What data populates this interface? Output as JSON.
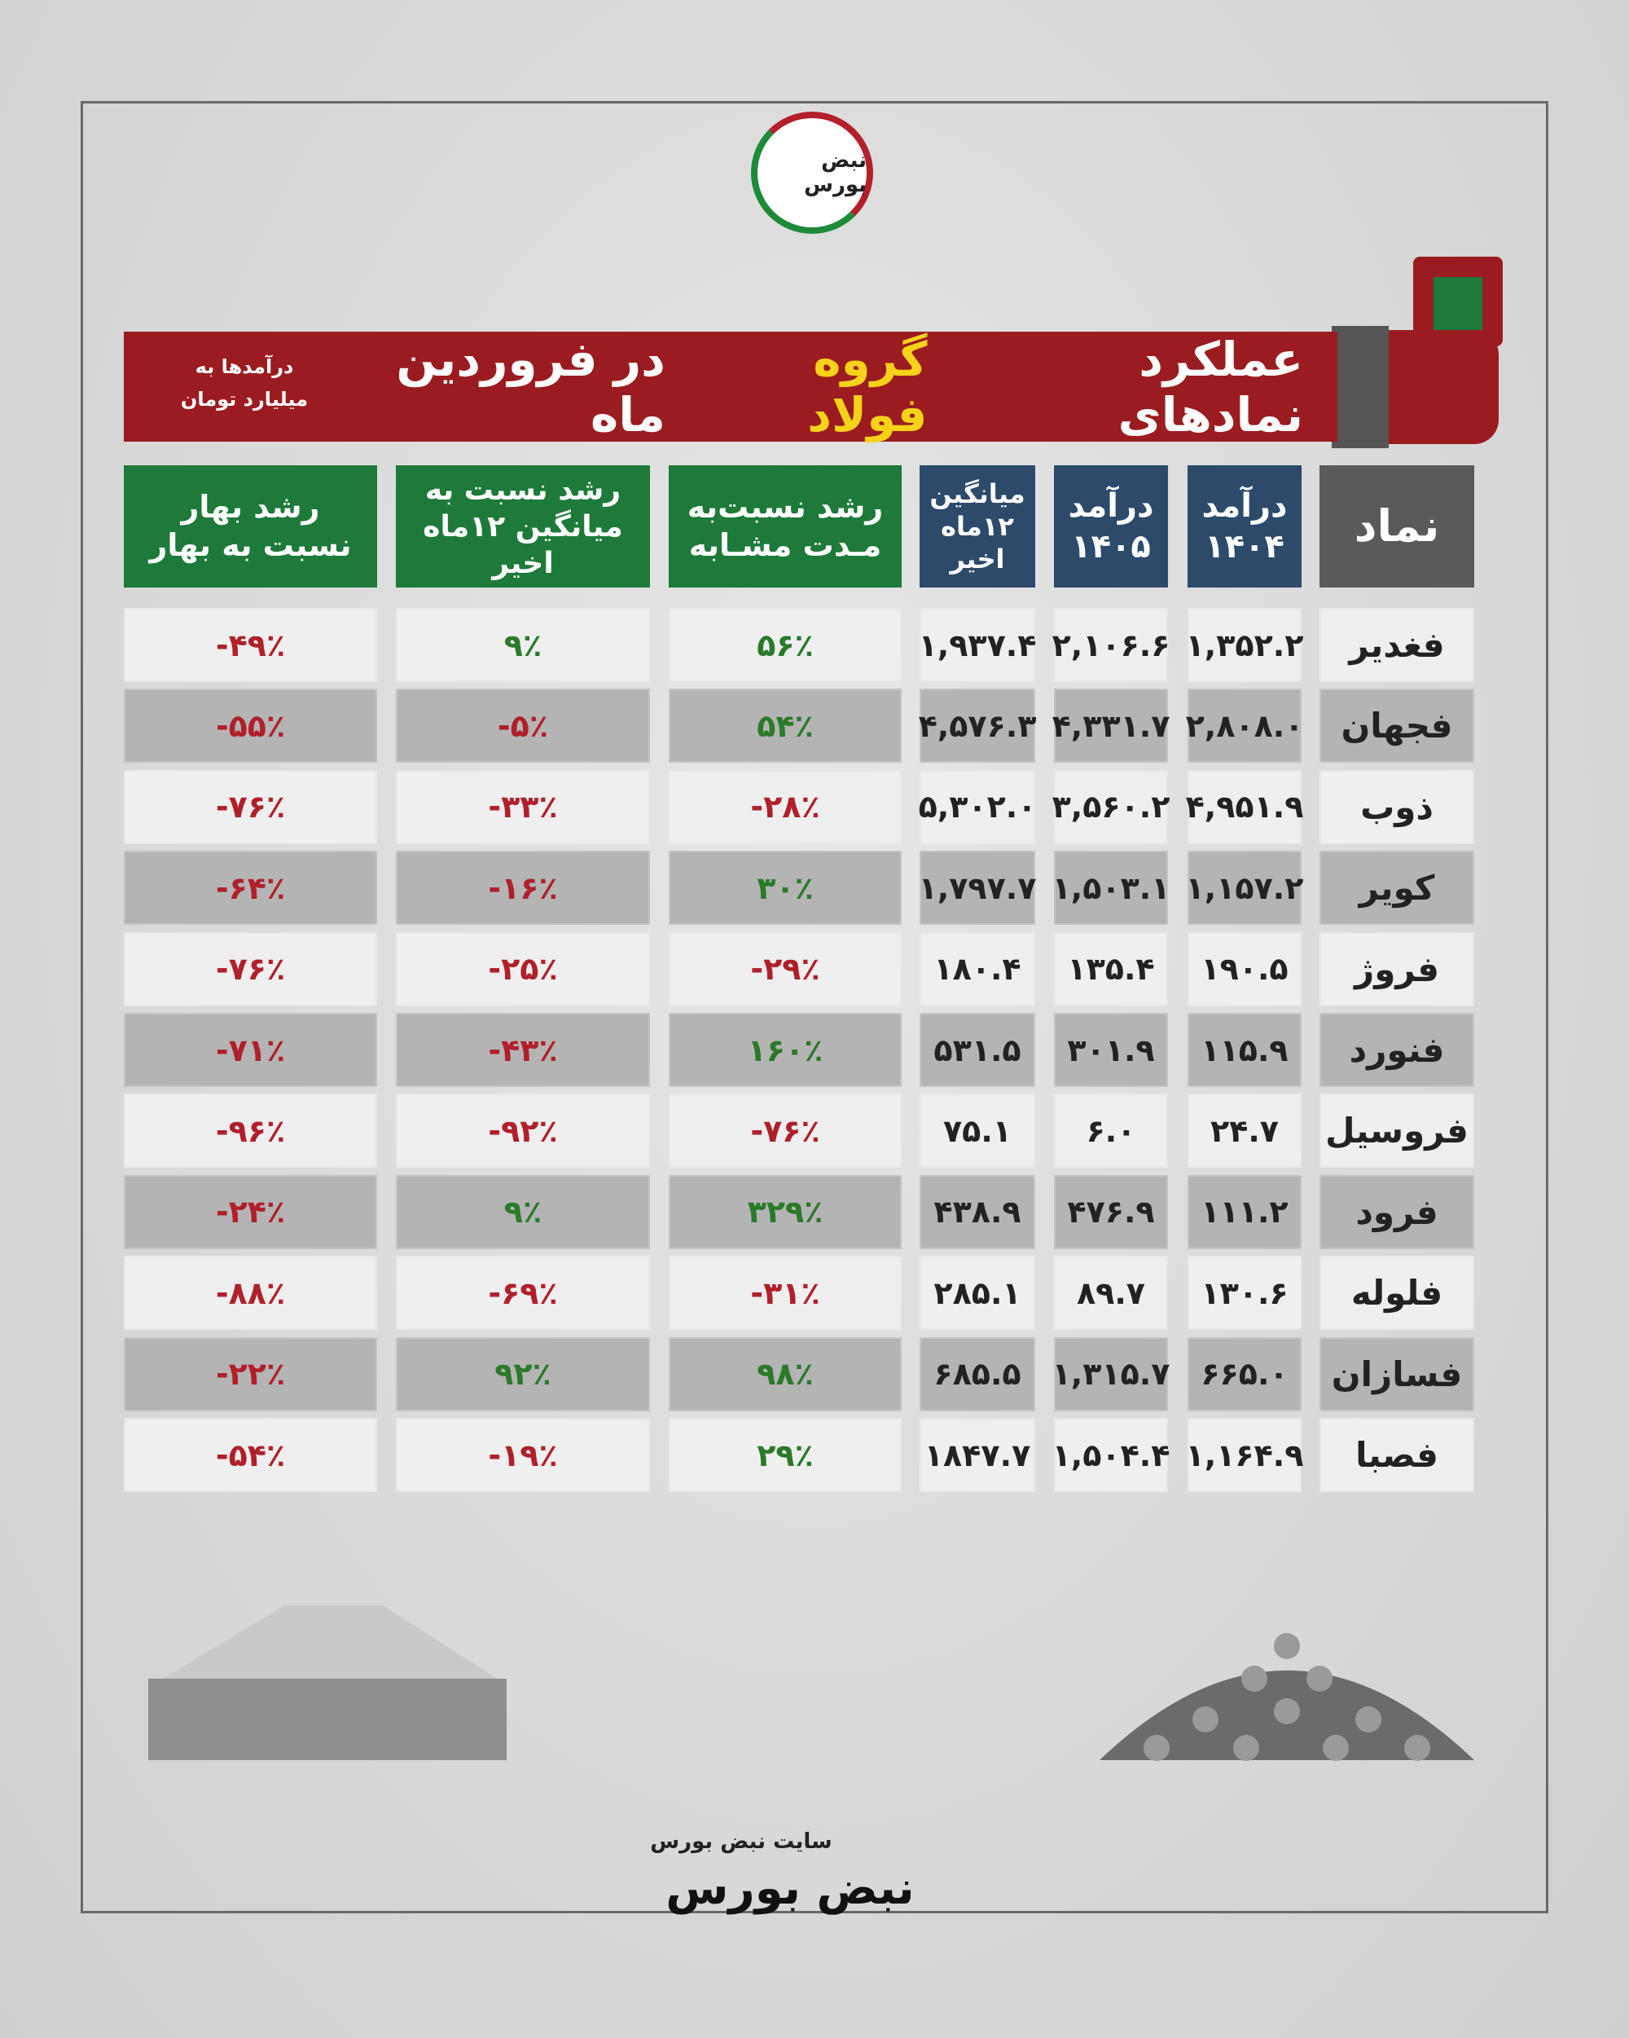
{
  "header": {
    "logo_text": "نبض بورس",
    "title_before": "عملکرد نمادهای",
    "title_highlight": "گروه فولاد",
    "title_after": "در فروردین ماه",
    "note": [
      "درآمدها به",
      "میلیارد تومان"
    ]
  },
  "table": {
    "columns": [
      [
        "نماد"
      ],
      [
        "درآمد",
        "۱۴۰۴"
      ],
      [
        "درآمد",
        "۱۴۰۵"
      ],
      [
        "میانگین",
        "۱۲ماه اخیر"
      ],
      [
        "رشد نسبت‌به",
        "مـدت مشـابه"
      ],
      [
        "رشد نسبت به",
        "میانگین ۱۲ماه اخیر"
      ],
      [
        "رشد  بهار",
        "نسبت به بهار"
      ]
    ],
    "rows": [
      [
        "فغدیر",
        "۱,۳۵۲.۲",
        "۲,۱۰۶.۶",
        "۱,۹۳۷.۴",
        "۵۶٪",
        "۹٪",
        "-۴۹٪"
      ],
      [
        "فجهان",
        "۲,۸۰۸.۰",
        "۴,۳۳۱.۷",
        "۴,۵۷۶.۳",
        "۵۴٪",
        "-۵٪",
        "-۵۵٪"
      ],
      [
        "ذوب",
        "۴,۹۵۱.۹",
        "۳,۵۶۰.۲",
        "۵,۳۰۲.۰",
        "-۲۸٪",
        "-۳۳٪",
        "-۷۶٪"
      ],
      [
        "کویر",
        "۱,۱۵۷.۲",
        "۱,۵۰۳.۱",
        "۱,۷۹۷.۷",
        "۳۰٪",
        "-۱۶٪",
        "-۶۴٪"
      ],
      [
        "فروژ",
        "۱۹۰.۵",
        "۱۳۵.۴",
        "۱۸۰.۴",
        "-۲۹٪",
        "-۲۵٪",
        "-۷۶٪"
      ],
      [
        "فنورد",
        "۱۱۵.۹",
        "۳۰۱.۹",
        "۵۳۱.۵",
        "۱۶۰٪",
        "-۴۳٪",
        "-۷۱٪"
      ],
      [
        "فروسیل",
        "۲۴.۷",
        "۶.۰",
        "۷۵.۱",
        "-۷۶٪",
        "-۹۲٪",
        "-۹۶٪"
      ],
      [
        "فرود",
        "۱۱۱.۲",
        "۴۷۶.۹",
        "۴۳۸.۹",
        "۳۲۹٪",
        "۹٪",
        "-۲۴٪"
      ],
      [
        "فلوله",
        "۱۳۰.۶",
        "۸۹.۷",
        "۲۸۵.۱",
        "-۳۱٪",
        "-۶۹٪",
        "-۸۸٪"
      ],
      [
        "فسازان",
        "۶۶۵.۰",
        "۱,۳۱۵.۷",
        "۶۸۵.۵",
        "۹۸٪",
        "۹۲٪",
        "-۲۲٪"
      ],
      [
        "فصبا",
        "۱,۱۶۴.۹",
        "۱,۵۰۴.۴",
        "۱۸۴۷.۷",
        "۲۹٪",
        "-۱۹٪",
        "-۵۴٪"
      ]
    ]
  },
  "footer": {
    "site": "سایت نبض بورس",
    "logo_text": "نبض بورس"
  }
}
